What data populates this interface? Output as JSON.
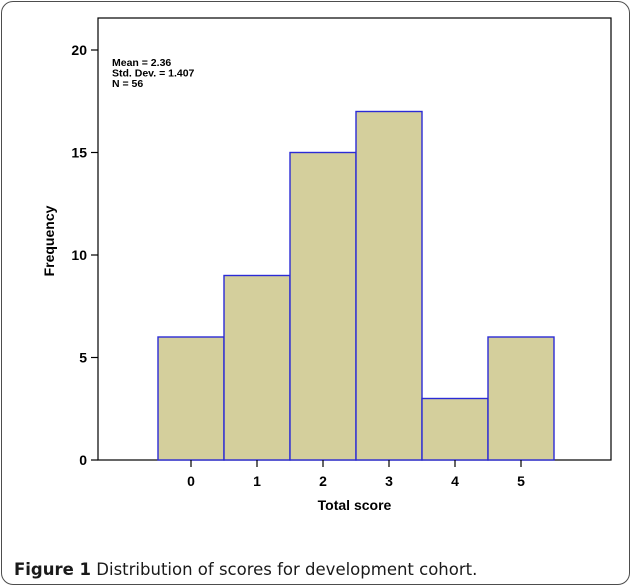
{
  "chart_data": {
    "type": "bar",
    "categories": [
      "0",
      "1",
      "2",
      "3",
      "4",
      "5"
    ],
    "values": [
      6,
      9,
      15,
      17,
      3,
      6
    ],
    "xlabel": "Total score",
    "ylabel": "Frequency",
    "ylim": [
      0,
      20
    ],
    "yticks": [
      "0",
      "5",
      "10",
      "15",
      "20"
    ],
    "grid": false,
    "bar_color": "#d4cf9c",
    "bar_edge_color": "#2b2bd6",
    "annotations": [
      "Mean = 2.36",
      "Std. Dev. = 1.407",
      "N = 56"
    ]
  },
  "caption": {
    "label": "Figure 1",
    "text": " Distribution of scores for development cohort."
  }
}
